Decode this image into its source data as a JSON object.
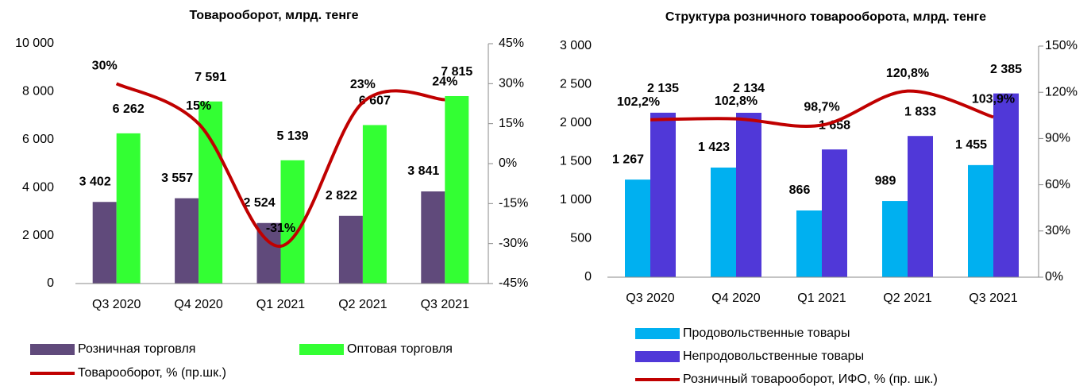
{
  "chart_data": [
    {
      "type": "bar",
      "title": "Товарооборот, млрд. тенге",
      "categories": [
        "Q3 2020",
        "Q4 2020",
        "Q1 2021",
        "Q2 2021",
        "Q3 2021"
      ],
      "series": [
        {
          "name": "Розничная торговля",
          "color": "#604a7b",
          "values": [
            3402,
            3557,
            2524,
            2822,
            3841
          ],
          "value_labels": [
            "3 402",
            "3 557",
            "2 524",
            "2 822",
            "3 841"
          ],
          "label_color": "#7030a0"
        },
        {
          "name": "Оптовая торговля",
          "color": "#33ff33",
          "values": [
            6262,
            7591,
            5139,
            6607,
            7815
          ],
          "value_labels": [
            "6 262",
            "7 591",
            "5 139",
            "6 607",
            "7 815"
          ],
          "label_color": "#000000"
        },
        {
          "name": "Товарооборот, % (пр.шк.)",
          "type": "line",
          "axis": "y2",
          "color": "#c00000",
          "values": [
            30,
            15,
            -31,
            23,
            24
          ],
          "value_labels": [
            "30%",
            "15%",
            "-31%",
            "23%",
            "24%"
          ],
          "label_color": "#c00000"
        }
      ],
      "ylim": [
        0,
        10000
      ],
      "yticks": [
        0,
        {
          "value": 2000,
          "label": "2 000"
        },
        {
          "value": 4000,
          "label": "4 000"
        },
        {
          "value": 6000,
          "label": "6 000"
        },
        {
          "value": 8000,
          "label": "8 000"
        },
        {
          "value": 10000,
          "label": "10 000"
        }
      ],
      "y2lim": [
        -45,
        45
      ],
      "y2ticks": [
        {
          "value": -45,
          "label": "-45%"
        },
        {
          "value": -30,
          "label": "-30%"
        },
        {
          "value": -15,
          "label": "-15%"
        },
        {
          "value": 0,
          "label": "0%"
        },
        {
          "value": 15,
          "label": "15%"
        },
        {
          "value": 30,
          "label": "30%"
        },
        {
          "value": 45,
          "label": "45%"
        }
      ],
      "legend": "bottom"
    },
    {
      "type": "bar",
      "title": "Структура розничного товарооборота, млрд. тенге",
      "categories": [
        "Q3 2020",
        "Q4 2020",
        "Q1 2021",
        "Q2 2021",
        "Q3 2021"
      ],
      "series": [
        {
          "name": "Продовольственные товары",
          "color": "#00b0f0",
          "values": [
            1267,
            1423,
            866,
            989,
            1455
          ],
          "value_labels": [
            "1 267",
            "1 423",
            "866",
            "989",
            "1 455"
          ],
          "label_color": "#00b0f0"
        },
        {
          "name": "Непродовольственные товары",
          "color": "#5038d8",
          "values": [
            2135,
            2134,
            1658,
            1833,
            2385
          ],
          "value_labels": [
            "2 135",
            "2 134",
            "1 658",
            "1 833",
            "2 385"
          ],
          "label_color": "#000000"
        },
        {
          "name": "Розничный товарооборот, ИФО, % (пр. шк.)",
          "type": "line",
          "axis": "y2",
          "color": "#c00000",
          "values": [
            102.2,
            102.8,
            98.7,
            120.8,
            103.9
          ],
          "value_labels": [
            "102,2%",
            "102,8%",
            "98,7%",
            "120,8%",
            "103,9%"
          ],
          "label_color": "#c00000"
        }
      ],
      "ylim": [
        0,
        3000
      ],
      "yticks": [
        0,
        500,
        {
          "value": 1000,
          "label": "1 000"
        },
        {
          "value": 1500,
          "label": "1 500"
        },
        {
          "value": 2000,
          "label": "2 000"
        },
        {
          "value": 2500,
          "label": "2 500"
        },
        {
          "value": 3000,
          "label": "3 000"
        }
      ],
      "y2lim": [
        0,
        150
      ],
      "y2ticks": [
        {
          "value": 0,
          "label": "0%"
        },
        {
          "value": 30,
          "label": "30%"
        },
        {
          "value": 60,
          "label": "60%"
        },
        {
          "value": 90,
          "label": "90%"
        },
        {
          "value": 120,
          "label": "120%"
        },
        {
          "value": 150,
          "label": "150%"
        }
      ],
      "legend": "bottom"
    }
  ]
}
